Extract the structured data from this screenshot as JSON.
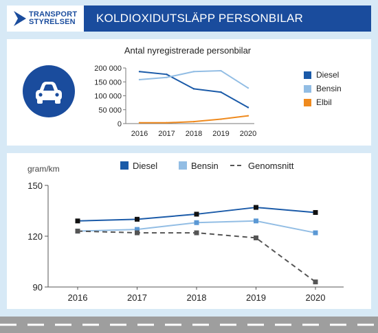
{
  "header": {
    "logo_line1": "TRANSPORT",
    "logo_line2": "STYRELSEN",
    "title": "KOLDIOXIDUTSLÄPP PERSONBILAR",
    "brand_color": "#1a4c9d"
  },
  "icons": {
    "car": "car-icon",
    "logo": "transportstyrelsen-logo-icon"
  },
  "chart_data": [
    {
      "type": "line",
      "title": "Antal nyregistrerade personbilar",
      "x": [
        "2016",
        "2017",
        "2018",
        "2019",
        "2020"
      ],
      "ylim": [
        0,
        200000
      ],
      "yticks": [
        0,
        50000,
        100000,
        150000,
        200000
      ],
      "ytick_labels": [
        "0",
        "50 000",
        "100 000",
        "150 000",
        "200 000"
      ],
      "legend_position": "right",
      "grid": false,
      "series": [
        {
          "name": "Diesel",
          "color": "#1a5aa8",
          "values": [
            187000,
            177000,
            125000,
            113000,
            58000
          ]
        },
        {
          "name": "Bensin",
          "color": "#92bde4",
          "values": [
            158000,
            166000,
            187000,
            190000,
            128000
          ]
        },
        {
          "name": "Elbil",
          "color": "#ef8a1e",
          "values": [
            3000,
            3000,
            7000,
            16000,
            28000
          ]
        }
      ]
    },
    {
      "type": "line",
      "ylabel": "gram/km",
      "x": [
        "2016",
        "2017",
        "2018",
        "2019",
        "2020"
      ],
      "ylim": [
        90,
        150
      ],
      "yticks": [
        90,
        120,
        150
      ],
      "ytick_labels": [
        "90",
        "120",
        "150"
      ],
      "legend_position": "top",
      "grid": false,
      "series": [
        {
          "name": "Diesel",
          "color": "#1a5aa8",
          "marker": "#111111",
          "dashed": false,
          "values": [
            129,
            130,
            133,
            137,
            134
          ]
        },
        {
          "name": "Bensin",
          "color": "#92bde4",
          "marker": "#5b98d4",
          "dashed": false,
          "values": [
            123,
            124,
            128,
            129,
            122
          ]
        },
        {
          "name": "Genomsnitt",
          "color": "#555555",
          "marker": "#555555",
          "dashed": true,
          "values": [
            123,
            122,
            122,
            119,
            93
          ]
        }
      ]
    }
  ]
}
